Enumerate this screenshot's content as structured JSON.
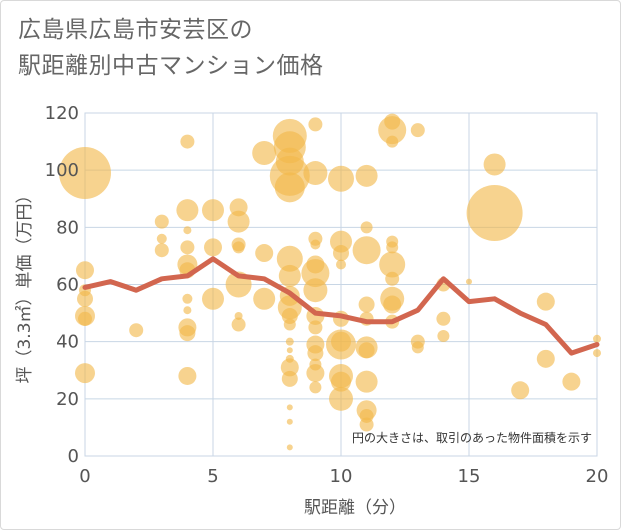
{
  "title_lines": [
    "広島県広島市安芸区の",
    "駅距離別中古マンション価格"
  ],
  "chart_data": {
    "type": "scatter",
    "title": "広島県広島市安芸区の駅距離別中古マンション価格",
    "xlabel": "駅距離（分）",
    "ylabel": "坪（3.3㎡）単価（万円）",
    "xlim": [
      0,
      20
    ],
    "ylim": [
      0,
      120
    ],
    "x_ticks": [
      0,
      5,
      10,
      15,
      20
    ],
    "y_ticks": [
      0,
      20,
      40,
      60,
      80,
      100,
      120
    ],
    "grid": true,
    "annotation": "円の大きさは、取引のあった物件面積を示す",
    "colors": {
      "bubble": "#f2b84b",
      "line": "#d2664f",
      "grid": "#c8d6e5"
    },
    "bubbles": [
      {
        "x": 0,
        "y": 99,
        "s": 26
      },
      {
        "x": 0,
        "y": 65,
        "s": 9
      },
      {
        "x": 0,
        "y": 58,
        "s": 6
      },
      {
        "x": 0,
        "y": 55,
        "s": 8
      },
      {
        "x": 0,
        "y": 49,
        "s": 10
      },
      {
        "x": 0,
        "y": 48,
        "s": 7
      },
      {
        "x": 0,
        "y": 29,
        "s": 10
      },
      {
        "x": 2,
        "y": 44,
        "s": 7
      },
      {
        "x": 3,
        "y": 82,
        "s": 7
      },
      {
        "x": 3,
        "y": 76,
        "s": 5
      },
      {
        "x": 3,
        "y": 72,
        "s": 7
      },
      {
        "x": 4,
        "y": 110,
        "s": 7
      },
      {
        "x": 4,
        "y": 86,
        "s": 11
      },
      {
        "x": 4,
        "y": 79,
        "s": 4
      },
      {
        "x": 4,
        "y": 73,
        "s": 7
      },
      {
        "x": 4,
        "y": 67,
        "s": 10
      },
      {
        "x": 4,
        "y": 65,
        "s": 8
      },
      {
        "x": 4,
        "y": 55,
        "s": 5
      },
      {
        "x": 4,
        "y": 51,
        "s": 4
      },
      {
        "x": 4,
        "y": 45,
        "s": 9
      },
      {
        "x": 4,
        "y": 43,
        "s": 8
      },
      {
        "x": 4,
        "y": 28,
        "s": 9
      },
      {
        "x": 5,
        "y": 86,
        "s": 11
      },
      {
        "x": 5,
        "y": 73,
        "s": 9
      },
      {
        "x": 5,
        "y": 55,
        "s": 11
      },
      {
        "x": 6,
        "y": 87,
        "s": 9
      },
      {
        "x": 6,
        "y": 82,
        "s": 11
      },
      {
        "x": 6,
        "y": 74,
        "s": 7
      },
      {
        "x": 6,
        "y": 73,
        "s": 6
      },
      {
        "x": 6,
        "y": 60,
        "s": 13
      },
      {
        "x": 6,
        "y": 49,
        "s": 4
      },
      {
        "x": 6,
        "y": 46,
        "s": 7
      },
      {
        "x": 7,
        "y": 106,
        "s": 12
      },
      {
        "x": 7,
        "y": 71,
        "s": 9
      },
      {
        "x": 7,
        "y": 55,
        "s": 11
      },
      {
        "x": 8,
        "y": 112,
        "s": 17
      },
      {
        "x": 8,
        "y": 108,
        "s": 16
      },
      {
        "x": 8,
        "y": 103,
        "s": 14
      },
      {
        "x": 8,
        "y": 98,
        "s": 20
      },
      {
        "x": 8,
        "y": 94,
        "s": 15
      },
      {
        "x": 8,
        "y": 69,
        "s": 13
      },
      {
        "x": 8,
        "y": 63,
        "s": 11
      },
      {
        "x": 8,
        "y": 56,
        "s": 10
      },
      {
        "x": 8,
        "y": 52,
        "s": 12
      },
      {
        "x": 8,
        "y": 49,
        "s": 8
      },
      {
        "x": 8,
        "y": 46,
        "s": 6
      },
      {
        "x": 8,
        "y": 40,
        "s": 4
      },
      {
        "x": 8,
        "y": 37,
        "s": 3
      },
      {
        "x": 8,
        "y": 34,
        "s": 4
      },
      {
        "x": 8,
        "y": 31,
        "s": 9
      },
      {
        "x": 8,
        "y": 27,
        "s": 8
      },
      {
        "x": 8,
        "y": 17,
        "s": 3
      },
      {
        "x": 8,
        "y": 12,
        "s": 3
      },
      {
        "x": 8,
        "y": 3,
        "s": 3
      },
      {
        "x": 9,
        "y": 116,
        "s": 7
      },
      {
        "x": 9,
        "y": 99,
        "s": 12
      },
      {
        "x": 9,
        "y": 76,
        "s": 7
      },
      {
        "x": 9,
        "y": 74,
        "s": 5
      },
      {
        "x": 9,
        "y": 67,
        "s": 9
      },
      {
        "x": 9,
        "y": 64,
        "s": 14
      },
      {
        "x": 9,
        "y": 58,
        "s": 12
      },
      {
        "x": 9,
        "y": 49,
        "s": 9
      },
      {
        "x": 9,
        "y": 45,
        "s": 7
      },
      {
        "x": 9,
        "y": 39,
        "s": 9
      },
      {
        "x": 9,
        "y": 36,
        "s": 8
      },
      {
        "x": 9,
        "y": 32,
        "s": 6
      },
      {
        "x": 9,
        "y": 29,
        "s": 9
      },
      {
        "x": 9,
        "y": 24,
        "s": 6
      },
      {
        "x": 10,
        "y": 97,
        "s": 13
      },
      {
        "x": 10,
        "y": 75,
        "s": 11
      },
      {
        "x": 10,
        "y": 71,
        "s": 8
      },
      {
        "x": 10,
        "y": 67,
        "s": 5
      },
      {
        "x": 10,
        "y": 48,
        "s": 8
      },
      {
        "x": 10,
        "y": 40,
        "s": 10
      },
      {
        "x": 10,
        "y": 39,
        "s": 15
      },
      {
        "x": 10,
        "y": 28,
        "s": 12
      },
      {
        "x": 10,
        "y": 26,
        "s": 10
      },
      {
        "x": 10,
        "y": 20,
        "s": 12
      },
      {
        "x": 11,
        "y": 98,
        "s": 11
      },
      {
        "x": 11,
        "y": 80,
        "s": 6
      },
      {
        "x": 11,
        "y": 72,
        "s": 14
      },
      {
        "x": 11,
        "y": 53,
        "s": 8
      },
      {
        "x": 11,
        "y": 48,
        "s": 7
      },
      {
        "x": 11,
        "y": 38,
        "s": 11
      },
      {
        "x": 11,
        "y": 37,
        "s": 8
      },
      {
        "x": 11,
        "y": 26,
        "s": 11
      },
      {
        "x": 11,
        "y": 16,
        "s": 10
      },
      {
        "x": 11,
        "y": 14,
        "s": 7
      },
      {
        "x": 11,
        "y": 11,
        "s": 7
      },
      {
        "x": 12,
        "y": 117,
        "s": 8
      },
      {
        "x": 12,
        "y": 114,
        "s": 14
      },
      {
        "x": 12,
        "y": 110,
        "s": 6
      },
      {
        "x": 12,
        "y": 75,
        "s": 6
      },
      {
        "x": 12,
        "y": 73,
        "s": 6
      },
      {
        "x": 12,
        "y": 67,
        "s": 13
      },
      {
        "x": 12,
        "y": 62,
        "s": 7
      },
      {
        "x": 12,
        "y": 55,
        "s": 12
      },
      {
        "x": 12,
        "y": 53,
        "s": 9
      },
      {
        "x": 12,
        "y": 47,
        "s": 7
      },
      {
        "x": 13,
        "y": 114,
        "s": 7
      },
      {
        "x": 13,
        "y": 40,
        "s": 7
      },
      {
        "x": 13,
        "y": 38,
        "s": 6
      },
      {
        "x": 14,
        "y": 60,
        "s": 7
      },
      {
        "x": 14,
        "y": 48,
        "s": 7
      },
      {
        "x": 14,
        "y": 42,
        "s": 6
      },
      {
        "x": 15,
        "y": 61,
        "s": 3
      },
      {
        "x": 16,
        "y": 102,
        "s": 11
      },
      {
        "x": 16,
        "y": 85,
        "s": 28
      },
      {
        "x": 17,
        "y": 23,
        "s": 9
      },
      {
        "x": 18,
        "y": 54,
        "s": 9
      },
      {
        "x": 18,
        "y": 34,
        "s": 9
      },
      {
        "x": 19,
        "y": 26,
        "s": 9
      },
      {
        "x": 20,
        "y": 41,
        "s": 4
      },
      {
        "x": 20,
        "y": 36,
        "s": 4
      }
    ],
    "line": {
      "x": [
        0,
        1,
        2,
        3,
        4,
        5,
        6,
        7,
        8,
        9,
        10,
        11,
        12,
        13,
        14,
        15,
        16,
        17,
        18,
        19,
        20
      ],
      "y": [
        59,
        61,
        58,
        62,
        63,
        69,
        63,
        62,
        57,
        50,
        49,
        47,
        47,
        51,
        62,
        54,
        55,
        50,
        46,
        36,
        39
      ]
    }
  }
}
